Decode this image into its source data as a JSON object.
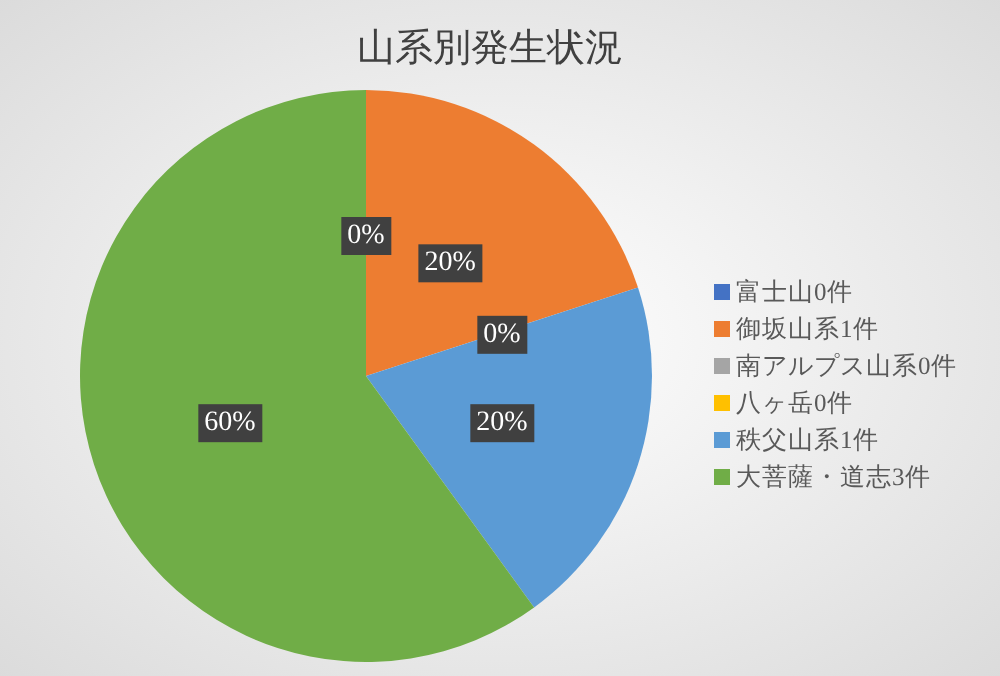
{
  "chart_data": {
    "type": "pie",
    "title": "山系別発生状況",
    "categories": [
      "富士山0件",
      "御坂山系1件",
      "南アルプス山系0件",
      "八ヶ岳0件",
      "秩父山系1件",
      "大菩薩・道志3件"
    ],
    "values": [
      0,
      20,
      0,
      0,
      20,
      60
    ],
    "colors": [
      "#4472c4",
      "#ed7d31",
      "#a5a5a5",
      "#ffc000",
      "#5b9bd5",
      "#70ad47"
    ],
    "value_labels": [
      "0%",
      "20%",
      "0%",
      null,
      "20%",
      "60%"
    ],
    "legend": "right"
  }
}
